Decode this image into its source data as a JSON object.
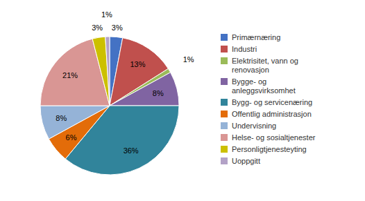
{
  "chart_data": {
    "type": "pie",
    "categories": [
      "Primærnæring",
      "Industri",
      "Elektrisitet, vann og\nrenovasjon",
      "Bygge- og\nanleggsvirksomhet",
      "Bygg- og servicenæring",
      "Offentlig administrasjon",
      "Undervisning",
      "Helse- og sosialtjenester",
      "Personligtjenesteyting",
      "Uoppgitt"
    ],
    "values": [
      3,
      13,
      1,
      8,
      36,
      6,
      8,
      21,
      3,
      1
    ],
    "value_labels": [
      "3%",
      "13%",
      "1%",
      "8%",
      "36%",
      "6%",
      "8%",
      "21%",
      "3%",
      "1%"
    ],
    "colors": [
      "#4472C4",
      "#C0504D",
      "#9BBB59",
      "#8064A2",
      "#31849B",
      "#E36C09",
      "#95B3D7",
      "#D99694",
      "#CCC000",
      "#B3A2C7"
    ],
    "data_labels": true,
    "legend": "right"
  }
}
